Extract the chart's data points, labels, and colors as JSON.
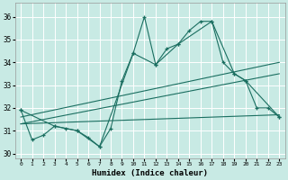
{
  "xlabel": "Humidex (Indice chaleur)",
  "bg_color": "#c8eae4",
  "line_color": "#1a6e60",
  "grid_color": "#ffffff",
  "xlim": [
    -0.5,
    23.5
  ],
  "ylim": [
    29.8,
    36.6
  ],
  "yticks": [
    30,
    31,
    32,
    33,
    34,
    35,
    36
  ],
  "xticks": [
    0,
    1,
    2,
    3,
    4,
    5,
    6,
    7,
    8,
    9,
    10,
    11,
    12,
    13,
    14,
    15,
    16,
    17,
    18,
    19,
    20,
    21,
    22,
    23
  ],
  "line1_x": [
    0,
    1,
    2,
    3,
    4,
    5,
    6,
    7,
    8,
    9,
    10,
    11,
    12,
    13,
    14,
    15,
    16,
    17,
    18,
    19,
    20,
    21,
    22,
    23
  ],
  "line1_y": [
    31.9,
    30.6,
    30.8,
    31.2,
    31.1,
    31.0,
    30.7,
    30.3,
    31.1,
    33.2,
    34.4,
    36.0,
    33.9,
    34.6,
    34.8,
    35.4,
    35.8,
    35.8,
    34.0,
    33.5,
    33.2,
    32.0,
    32.0,
    31.6
  ],
  "line2_x": [
    0,
    3,
    5,
    7,
    10,
    12,
    14,
    17,
    19,
    20,
    23
  ],
  "line2_y": [
    31.9,
    31.2,
    31.0,
    30.3,
    34.4,
    33.9,
    34.8,
    35.8,
    33.5,
    33.2,
    31.6
  ],
  "line3_x": [
    0,
    23
  ],
  "line3_y": [
    31.3,
    31.7
  ],
  "line4_x": [
    0,
    23
  ],
  "line4_y": [
    31.3,
    33.5
  ],
  "line5_x": [
    0,
    23
  ],
  "line5_y": [
    31.6,
    34.0
  ]
}
